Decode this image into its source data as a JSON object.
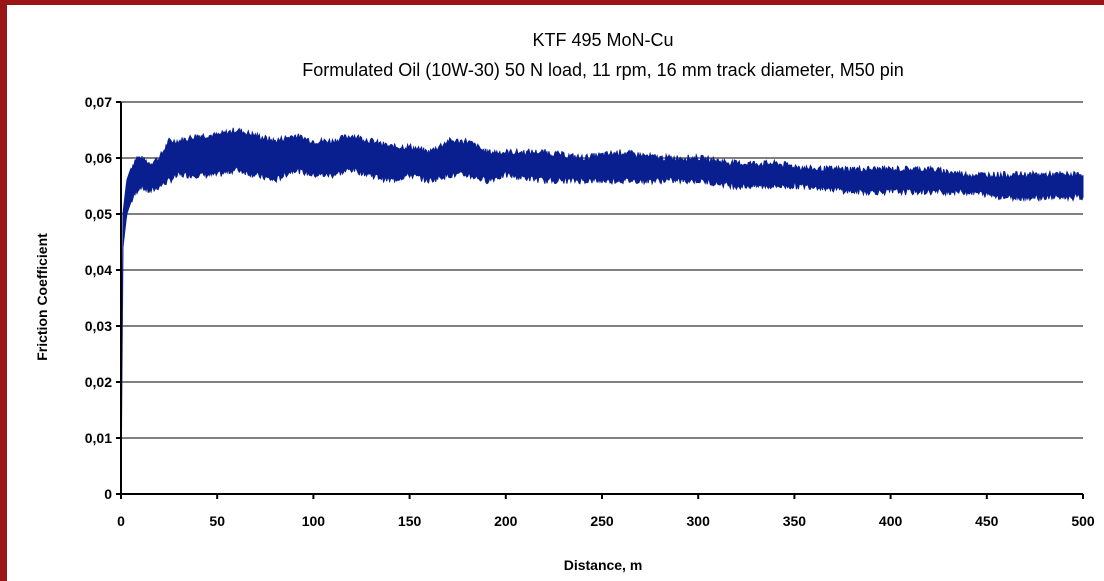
{
  "chart_data": {
    "type": "line",
    "title": "KTF 495 MoN-Cu",
    "subtitle": "Formulated Oil (10W-30) 50 N load, 11 rpm, 16 mm track diameter,  M50 pin",
    "xlabel": "Distance, m",
    "ylabel": "Friction Coefficient",
    "xlim": [
      0,
      500
    ],
    "ylim": [
      0,
      0.07
    ],
    "x_ticks": [
      0,
      50,
      100,
      150,
      200,
      250,
      300,
      350,
      400,
      450,
      500
    ],
    "x_tick_labels": [
      "0",
      "50",
      "100",
      "150",
      "200",
      "250",
      "300",
      "350",
      "400",
      "450",
      "500"
    ],
    "y_ticks": [
      0,
      0.01,
      0.02,
      0.03,
      0.04,
      0.05,
      0.06,
      0.07
    ],
    "y_tick_labels": [
      "0",
      "0,01",
      "0,02",
      "0,03",
      "0,04",
      "0,05",
      "0,06",
      "0,07"
    ],
    "grid": "horizontal",
    "legend": "none",
    "series": [
      {
        "color": "#0a1f8f",
        "x": [
          0,
          1,
          2,
          3,
          5,
          8,
          10,
          15,
          20,
          25,
          30,
          40,
          50,
          60,
          70,
          80,
          90,
          100,
          110,
          120,
          130,
          140,
          150,
          160,
          170,
          180,
          190,
          200,
          220,
          240,
          260,
          280,
          300,
          320,
          340,
          360,
          380,
          400,
          420,
          440,
          460,
          480,
          500
        ],
        "y_low": [
          0,
          0.044,
          0.047,
          0.05,
          0.052,
          0.054,
          0.055,
          0.054,
          0.055,
          0.056,
          0.057,
          0.057,
          0.057,
          0.058,
          0.057,
          0.056,
          0.058,
          0.057,
          0.057,
          0.058,
          0.057,
          0.056,
          0.057,
          0.056,
          0.057,
          0.057,
          0.056,
          0.057,
          0.056,
          0.056,
          0.056,
          0.056,
          0.056,
          0.055,
          0.055,
          0.055,
          0.054,
          0.054,
          0.054,
          0.054,
          0.053,
          0.053,
          0.053
        ],
        "y_high": [
          0.002,
          0.05,
          0.053,
          0.056,
          0.058,
          0.06,
          0.06,
          0.059,
          0.06,
          0.063,
          0.063,
          0.064,
          0.064,
          0.065,
          0.064,
          0.063,
          0.064,
          0.063,
          0.063,
          0.064,
          0.063,
          0.062,
          0.062,
          0.061,
          0.063,
          0.063,
          0.061,
          0.061,
          0.061,
          0.06,
          0.061,
          0.06,
          0.06,
          0.059,
          0.059,
          0.058,
          0.058,
          0.058,
          0.058,
          0.057,
          0.057,
          0.057,
          0.057
        ]
      }
    ]
  }
}
